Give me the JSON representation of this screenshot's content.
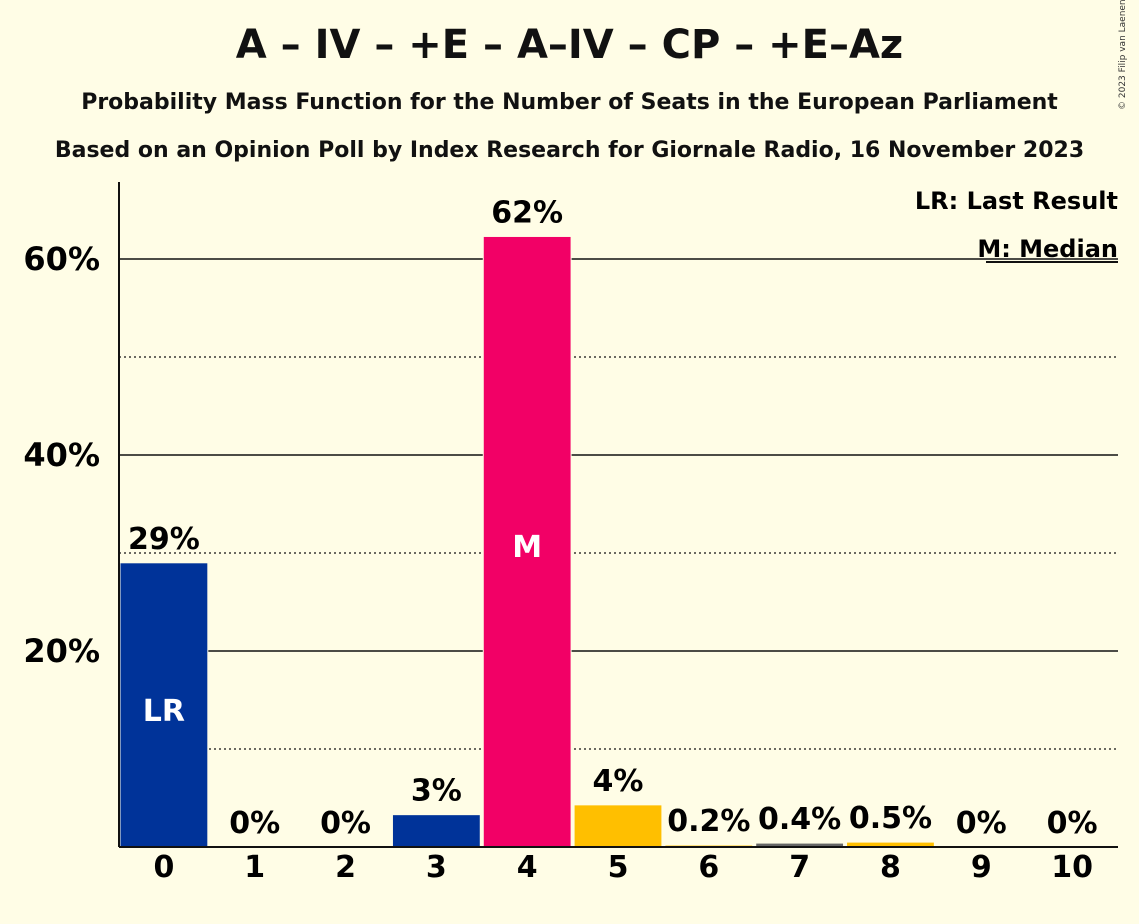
{
  "header": {
    "title": "A – IV – +E – A–IV – CP – +E–Az",
    "subtitle1": "Probability Mass Function for the Number of Seats in the European Parliament",
    "subtitle2": "Based on an Opinion Poll by Index Research for Giornale Radio, 16 November 2023",
    "copyright": "© 2023 Filip van Laenen"
  },
  "legend": {
    "last_result": "LR: Last Result",
    "median": "M: Median"
  },
  "chart_data": {
    "type": "bar",
    "categories": [
      "0",
      "1",
      "2",
      "3",
      "4",
      "5",
      "6",
      "7",
      "8",
      "9",
      "10"
    ],
    "values": [
      29,
      0,
      0,
      3.3,
      62.3,
      4.3,
      0.2,
      0.4,
      0.5,
      0,
      0
    ],
    "data_labels": [
      "29%",
      "0%",
      "0%",
      "3%",
      "62%",
      "4%",
      "0.2%",
      "0.4%",
      "0.5%",
      "0%",
      "0%"
    ],
    "bar_colors": [
      "#003399",
      "#003399",
      "#003399",
      "#003399",
      "#F20066",
      "#FFBF00",
      "#FFBF00",
      "#666666",
      "#FFBF00",
      "#FFBF00",
      "#FFBF00"
    ],
    "inside_labels": {
      "0": "LR",
      "4": "M"
    },
    "ylim": [
      0,
      68
    ],
    "yticks": [
      20,
      40,
      60
    ],
    "ytick_labels": [
      "20%",
      "40%",
      "60%"
    ],
    "minor_gridlines": [
      10,
      30,
      50
    ],
    "xlabel": "",
    "ylabel": "",
    "grid": true,
    "legend_position": "top-right"
  }
}
